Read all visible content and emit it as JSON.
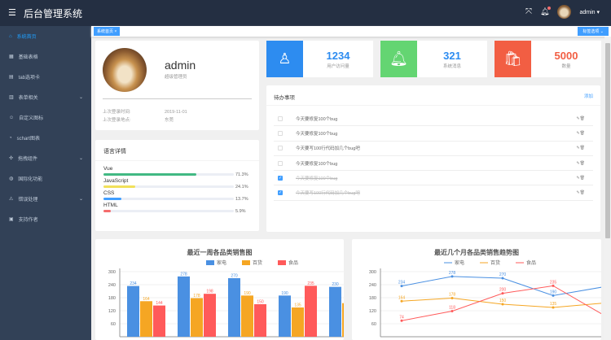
{
  "header": {
    "title": "后台管理系统",
    "username": "admin",
    "menu_icon": "hamburger-icon",
    "fullscreen_icon": "fullscreen-icon",
    "bell_icon": "bell-icon"
  },
  "sidebar": {
    "items": [
      {
        "label": "系统首页",
        "icon": "home-icon",
        "active": true
      },
      {
        "label": "基础表格",
        "icon": "grid-icon"
      },
      {
        "label": "tab选项卡",
        "icon": "copy-icon"
      },
      {
        "label": "表单相关",
        "icon": "form-icon",
        "submenu": true
      },
      {
        "label": "自定义图标",
        "icon": "smile-icon"
      },
      {
        "label": "schart图表",
        "icon": "pie-icon"
      },
      {
        "label": "拖拽组件",
        "icon": "rank-icon",
        "submenu": true
      },
      {
        "label": "国际化功能",
        "icon": "globe-icon"
      },
      {
        "label": "错误处理",
        "icon": "warning-icon",
        "submenu": true
      },
      {
        "label": "支持作者",
        "icon": "gift-icon"
      }
    ]
  },
  "tags": {
    "active_tag": "系统首页",
    "close": "×",
    "options_label": "标签选项"
  },
  "user_card": {
    "name": "admin",
    "role": "超级管理员",
    "last_login_time_label": "上次登录时间:",
    "last_login_time": "2019-11-01",
    "last_login_place_label": "上次登录地点:",
    "last_login_place": "东莞"
  },
  "languages": {
    "title": "语言详情",
    "items": [
      {
        "name": "Vue",
        "percent": 71.3,
        "label": "71.3%",
        "color": "#42b983"
      },
      {
        "name": "JavaScript",
        "percent": 24.1,
        "label": "24.1%",
        "color": "#f1e05a"
      },
      {
        "name": "CSS",
        "percent": 13.7,
        "label": "13.7%",
        "color": "#409eff"
      },
      {
        "name": "HTML",
        "percent": 5.9,
        "label": "5.9%",
        "color": "#f56c6c"
      }
    ]
  },
  "stats": [
    {
      "value": "1234",
      "label": "用户访问量",
      "color": "#2d8cf0",
      "value_color": "#2d8cf0",
      "icon": "user-icon"
    },
    {
      "value": "321",
      "label": "系统消息",
      "color": "#64d572",
      "value_color": "#2d8cf0",
      "icon": "bell-icon"
    },
    {
      "value": "5000",
      "label": "数量",
      "color": "#f25e43",
      "value_color": "#f25e43",
      "icon": "bag-icon"
    }
  ],
  "todo": {
    "title": "待办事项",
    "add_label": "添加",
    "ops": "✎🗑",
    "items": [
      {
        "text": "今天要修复100个bug",
        "done": false
      },
      {
        "text": "今天要修复100个bug",
        "done": false
      },
      {
        "text": "今天要写100行代码加几个bug吧",
        "done": false
      },
      {
        "text": "今天要修复100个bug",
        "done": false
      },
      {
        "text": "今天要修复100个bug",
        "done": true
      },
      {
        "text": "今天要写100行代码加几个bug吧",
        "done": true
      }
    ]
  },
  "chart_data": [
    {
      "type": "bar",
      "title": "最近一周各品类销售图",
      "ylim": [
        0,
        300
      ],
      "yticks": [
        60,
        120,
        180,
        240,
        300
      ],
      "grid": true,
      "legend": "top",
      "series": [
        {
          "name": "家电",
          "color": "#4a90e2",
          "values": [
            234,
            278,
            270,
            190,
            230
          ]
        },
        {
          "name": "百货",
          "color": "#f5a623",
          "values": [
            164,
            178,
            190,
            135,
            155
          ]
        },
        {
          "name": "食品",
          "color": "#ff5a5a",
          "values": [
            144,
            198,
            150,
            235,
            null
          ]
        }
      ]
    },
    {
      "type": "line",
      "title": "最近几个月各品类销售趋势图",
      "ylim": [
        0,
        300
      ],
      "yticks": [
        60,
        120,
        180,
        240,
        300
      ],
      "grid": true,
      "legend": "top",
      "series": [
        {
          "name": "家电",
          "color": "#4a90e2",
          "values": [
            234,
            278,
            270,
            190,
            230
          ]
        },
        {
          "name": "百货",
          "color": "#f5a623",
          "values": [
            164,
            178,
            150,
            135,
            155
          ]
        },
        {
          "name": "食品",
          "color": "#ff5a5a",
          "values": [
            74,
            118,
            200,
            235,
            100
          ]
        }
      ]
    }
  ]
}
